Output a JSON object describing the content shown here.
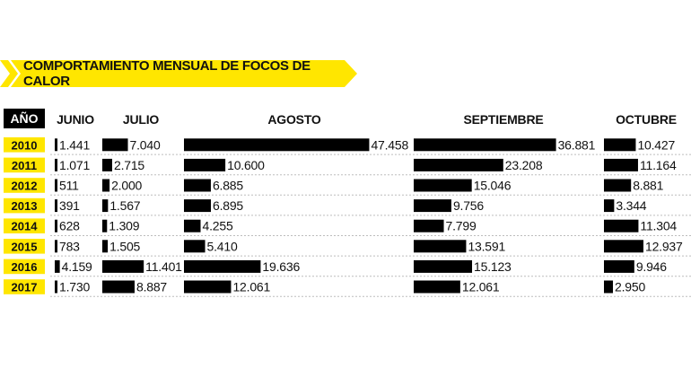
{
  "colors": {
    "accent": "#FFE600",
    "bar": "#000000",
    "text": "#111111",
    "separator": "#BDBDBD"
  },
  "banner": {
    "title": "COMPORTAMIENTO MENSUAL DE FOCOS DE CALOR"
  },
  "chart_data": {
    "type": "bar",
    "title": "COMPORTAMIENTO MENSUAL DE FOCOS DE CALOR",
    "year_header": "AÑO",
    "categories": [
      "2010",
      "2011",
      "2012",
      "2013",
      "2014",
      "2015",
      "2016",
      "2017"
    ],
    "series": [
      {
        "name": "JUNIO",
        "values": [
          1441,
          1071,
          511,
          391,
          628,
          783,
          4159,
          1730
        ],
        "labels": [
          "1.441",
          "1.071",
          "511",
          "391",
          "628",
          "783",
          "4.159",
          "1.730"
        ]
      },
      {
        "name": "JULIO",
        "values": [
          7040,
          2715,
          2000,
          1567,
          1309,
          1505,
          11401,
          8887
        ],
        "labels": [
          "7.040",
          "2.715",
          "2.000",
          "1.567",
          "1.309",
          "1.505",
          "11.401",
          "8.887"
        ]
      },
      {
        "name": "AGOSTO",
        "values": [
          47458,
          10600,
          6885,
          6895,
          4255,
          5410,
          19636,
          12061
        ],
        "labels": [
          "47.458",
          "10.600",
          "6.885",
          "6.895",
          "4.255",
          "5.410",
          "19.636",
          "12.061"
        ]
      },
      {
        "name": "SEPTIEMBRE",
        "values": [
          36881,
          23208,
          15046,
          9756,
          7799,
          13591,
          15123,
          12061
        ],
        "labels": [
          "36.881",
          "23.208",
          "15.046",
          "9.756",
          "7.799",
          "13.591",
          "15.123",
          "12.061"
        ]
      },
      {
        "name": "OCTUBRE",
        "values": [
          10427,
          11164,
          8881,
          3344,
          11304,
          12937,
          9946,
          2950
        ],
        "labels": [
          "10.427",
          "11.164",
          "8.881",
          "3.344",
          "11.304",
          "12.937",
          "9.946",
          "2.950"
        ]
      }
    ]
  }
}
